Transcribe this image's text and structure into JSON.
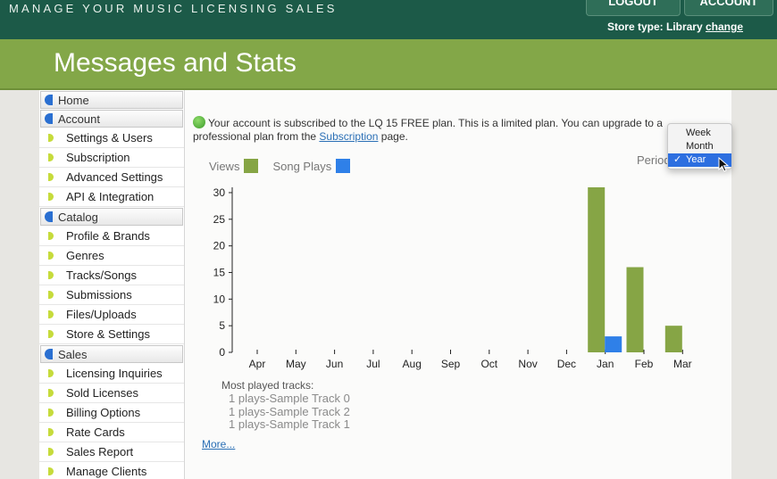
{
  "header": {
    "brand": "MANAGE YOUR MUSIC LICENSING SALES",
    "logout_label": "LOGOUT",
    "account_label": "ACCOUNT",
    "store_type_prefix": "Store type: Library ",
    "store_type_change": "change"
  },
  "page_title": "Messages and Stats",
  "sidebar": {
    "sections": [
      {
        "label": "Home",
        "items": []
      },
      {
        "label": "Account",
        "items": [
          "Settings & Users",
          "Subscription",
          "Advanced Settings",
          "API & Integration"
        ]
      },
      {
        "label": "Catalog",
        "items": [
          "Profile & Brands",
          "Genres",
          "Tracks/Songs",
          "Submissions",
          "Files/Uploads",
          "Store & Settings"
        ]
      },
      {
        "label": "Sales",
        "items": [
          "Licensing Inquiries",
          "Sold Licenses",
          "Billing Options",
          "Rate Cards",
          "Sales Report",
          "Manage Clients"
        ]
      }
    ]
  },
  "notice": {
    "text_before": "Your account is subscribed to the LQ 15 FREE plan. This is a limited plan. You can upgrade to a professional plan from the ",
    "link": "Subscription",
    "text_after": " page."
  },
  "legend": {
    "views_label": "Views",
    "plays_label": "Song Plays"
  },
  "period": {
    "label": "Period",
    "options": [
      "Week",
      "Month",
      "Year"
    ],
    "selected": "Year"
  },
  "colors": {
    "views": "#86a545",
    "plays": "#2f80e8"
  },
  "chart_data": {
    "type": "bar",
    "categories": [
      "Apr",
      "May",
      "Jun",
      "Jul",
      "Aug",
      "Sep",
      "Oct",
      "Nov",
      "Dec",
      "Jan",
      "Feb",
      "Mar"
    ],
    "series": [
      {
        "name": "Views",
        "values": [
          0,
          0,
          0,
          0,
          0,
          0,
          0,
          0,
          0,
          31,
          16,
          5
        ]
      },
      {
        "name": "Song Plays",
        "values": [
          0,
          0,
          0,
          0,
          0,
          0,
          0,
          0,
          0,
          3,
          0,
          0
        ]
      }
    ],
    "yticks": [
      0,
      5,
      10,
      15,
      20,
      25,
      30
    ],
    "ylim": [
      0,
      31
    ],
    "legend": "top-left"
  },
  "most_played": {
    "title": "Most played tracks:",
    "tracks": [
      "1 plays-Sample Track 0",
      "1 plays-Sample Track 2",
      "1 plays-Sample Track 1"
    ]
  },
  "more_link": "More..."
}
